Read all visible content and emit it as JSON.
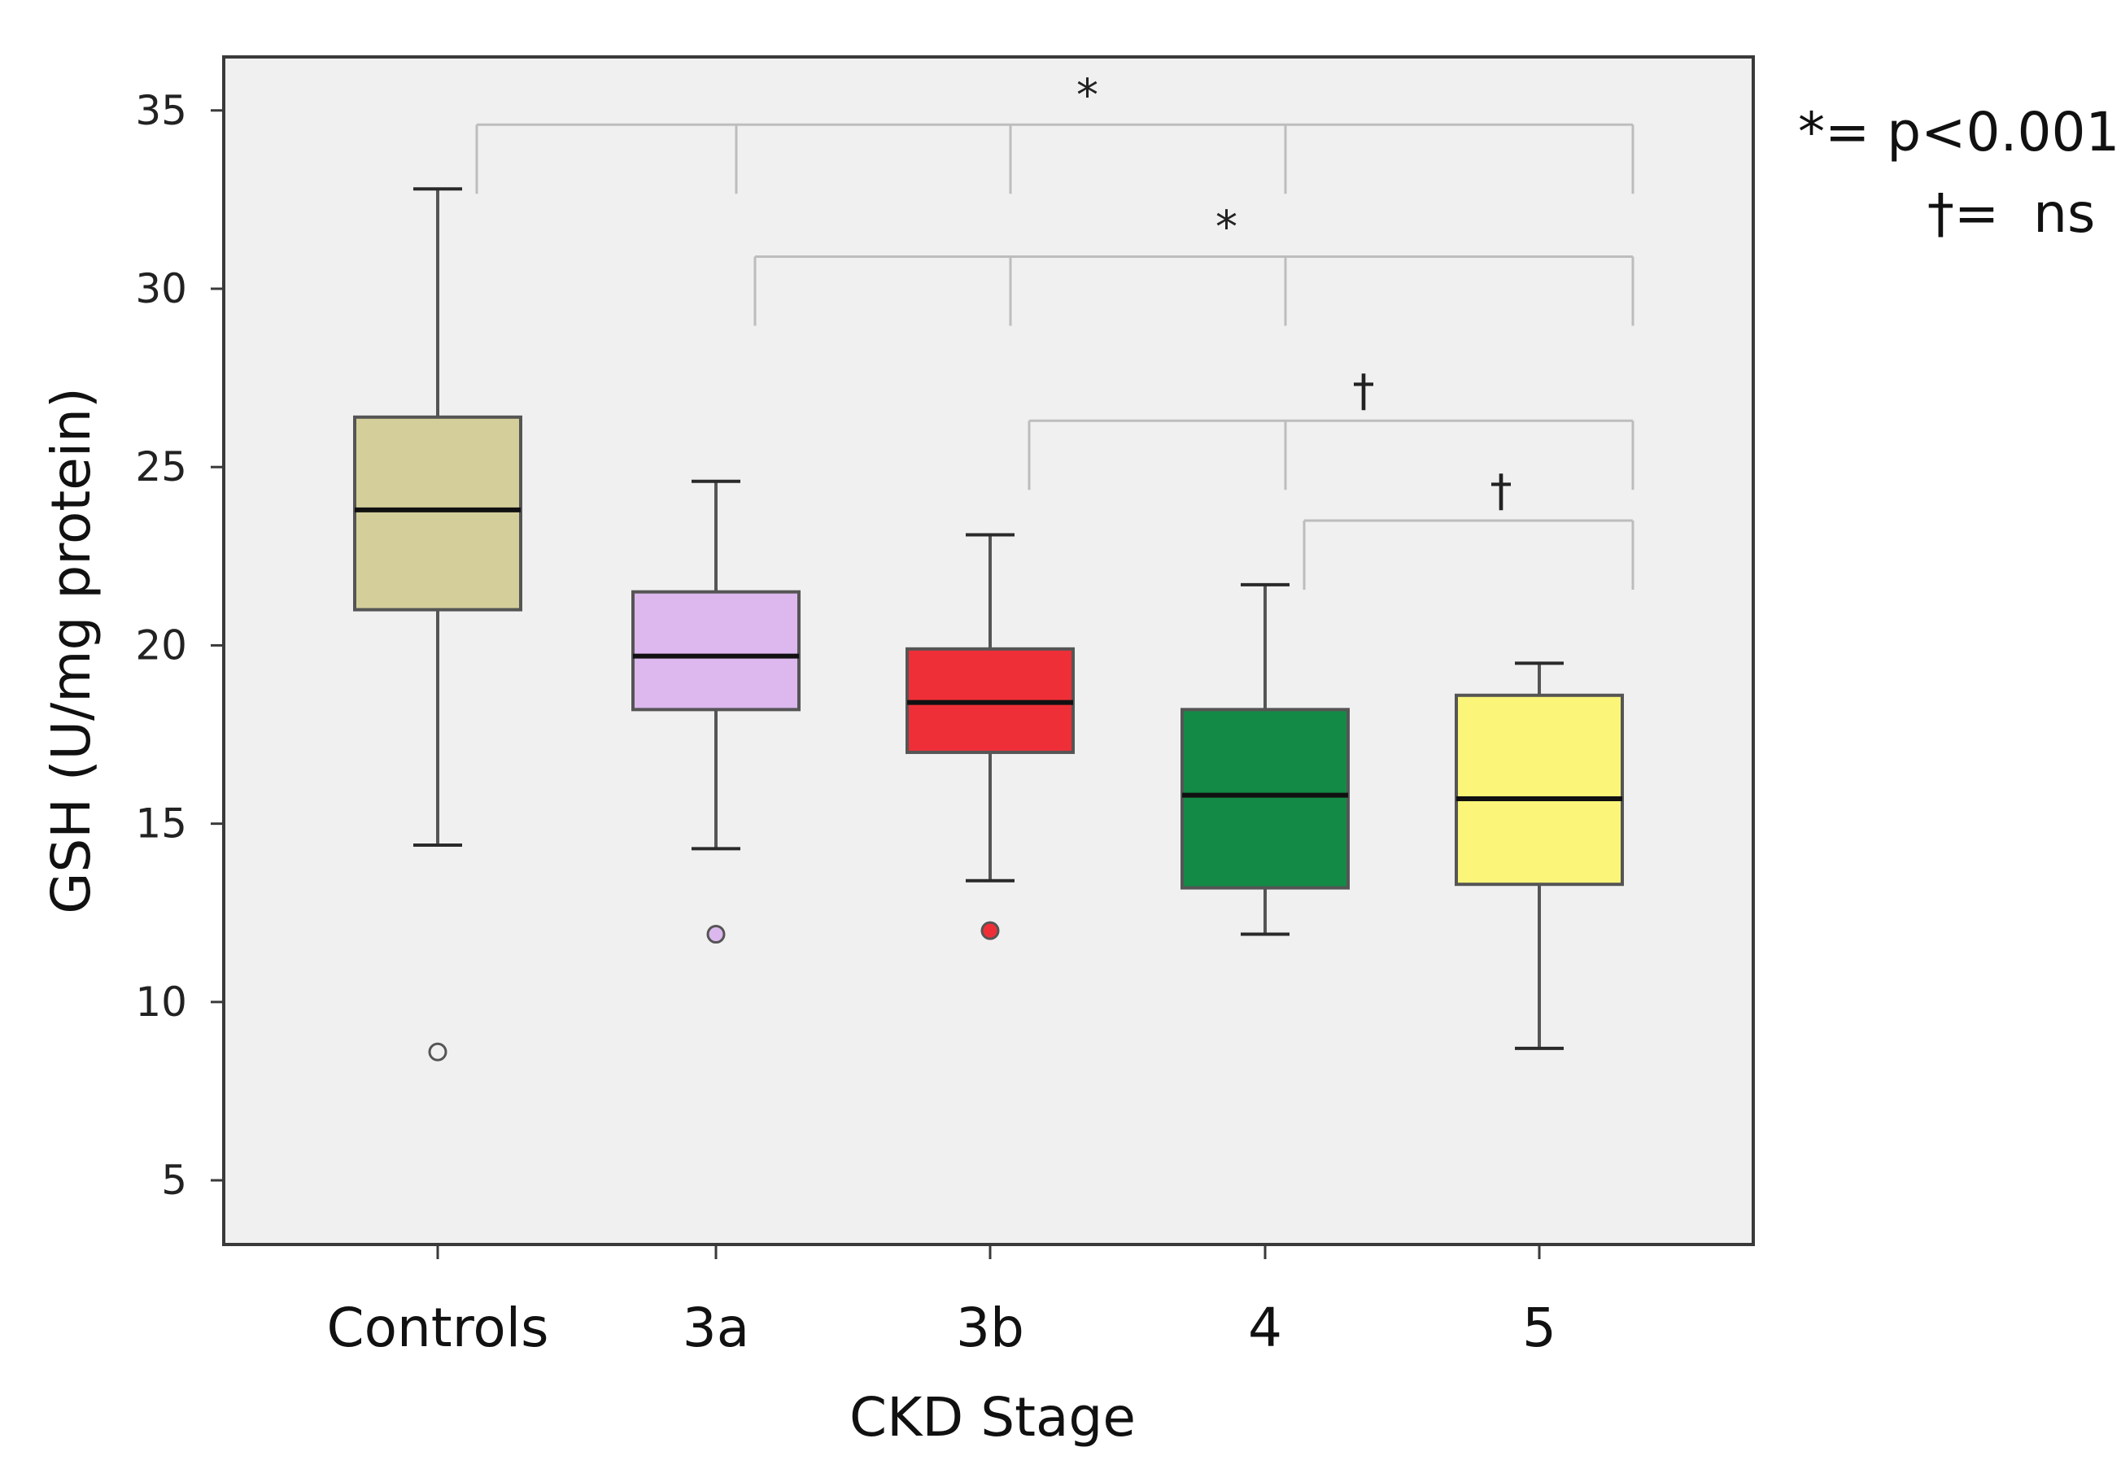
{
  "chart_data": {
    "type": "box",
    "title": "",
    "xlabel": "CKD Stage",
    "ylabel": "GSH (U/mg protein)",
    "ylim": [
      3.2,
      36.5
    ],
    "yticks": [
      5,
      10,
      15,
      20,
      25,
      30,
      35
    ],
    "grid": false,
    "categories": [
      "Controls",
      "3a",
      "3b",
      "4",
      "5"
    ],
    "series": [
      {
        "name": "Controls",
        "color": "#d4cf9a",
        "whisker_low": 14.4,
        "q1": 21.0,
        "median": 23.8,
        "q3": 26.4,
        "whisker_high": 32.8,
        "outliers": [
          8.6
        ],
        "outlier_filled": false
      },
      {
        "name": "3a",
        "color": "#dcb8ee",
        "whisker_low": 14.3,
        "q1": 18.2,
        "median": 19.7,
        "q3": 21.5,
        "whisker_high": 24.6,
        "outliers": [
          11.9
        ],
        "outlier_filled": true
      },
      {
        "name": "3b",
        "color": "#ef2f37",
        "whisker_low": 13.4,
        "q1": 17.0,
        "median": 18.4,
        "q3": 19.9,
        "whisker_high": 23.1,
        "outliers": [
          12.0
        ],
        "outlier_filled": true
      },
      {
        "name": "4",
        "color": "#148a47",
        "whisker_low": 11.9,
        "q1": 13.2,
        "median": 15.8,
        "q3": 18.2,
        "whisker_high": 21.7,
        "outliers": [],
        "outlier_filled": true
      },
      {
        "name": "5",
        "color": "#fbf679",
        "whisker_low": 8.7,
        "q1": 13.3,
        "median": 15.7,
        "q3": 18.6,
        "whisker_high": 19.5,
        "outliers": [],
        "outlier_filled": true
      }
    ],
    "significance_brackets": [
      {
        "mark": "*",
        "y": 34.6,
        "from": "Controls",
        "to": "5",
        "ticks": [
          "Controls",
          "3a",
          "3b",
          "4",
          "5"
        ]
      },
      {
        "mark": "*",
        "y": 30.9,
        "from": "3a",
        "to": "5",
        "ticks": [
          "3a",
          "3b",
          "4",
          "5"
        ]
      },
      {
        "mark": "†",
        "y": 26.3,
        "from": "3b",
        "to": "5",
        "ticks": [
          "3b",
          "4",
          "5"
        ]
      },
      {
        "mark": "†",
        "y": 23.5,
        "from": "4",
        "to": "5",
        "ticks": [
          "4",
          "5"
        ]
      }
    ],
    "legend": {
      "position": "top-right",
      "entries": [
        {
          "symbol": "*",
          "text": "= p<0.001"
        },
        {
          "symbol": "†",
          "text": "=  ns"
        }
      ]
    }
  }
}
